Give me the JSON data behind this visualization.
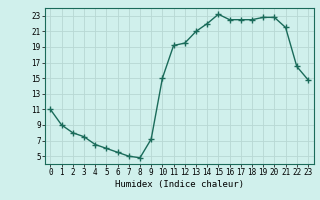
{
  "x": [
    0,
    1,
    2,
    3,
    4,
    5,
    6,
    7,
    8,
    9,
    10,
    11,
    12,
    13,
    14,
    15,
    16,
    17,
    18,
    19,
    20,
    21,
    22,
    23
  ],
  "y": [
    11,
    9,
    8,
    7.5,
    6.5,
    6,
    5.5,
    5,
    4.8,
    7.2,
    15,
    19.2,
    19.5,
    21,
    22,
    23.2,
    22.5,
    22.5,
    22.5,
    22.8,
    22.8,
    21.5,
    16.5,
    14.8
  ],
  "line_color": "#1a6b5a",
  "marker": "+",
  "marker_size": 4,
  "linewidth": 1.0,
  "bg_color": "#d0f0ec",
  "grid_color": "#b8d8d4",
  "xlabel": "Humidex (Indice chaleur)",
  "xlabel_fontsize": 6.5,
  "yticks": [
    5,
    7,
    9,
    11,
    13,
    15,
    17,
    19,
    21,
    23
  ],
  "xticks": [
    0,
    1,
    2,
    3,
    4,
    5,
    6,
    7,
    8,
    9,
    10,
    11,
    12,
    13,
    14,
    15,
    16,
    17,
    18,
    19,
    20,
    21,
    22,
    23
  ],
  "xlim": [
    -0.5,
    23.5
  ],
  "ylim": [
    4,
    24
  ],
  "tick_fontsize": 5.5,
  "title": ""
}
